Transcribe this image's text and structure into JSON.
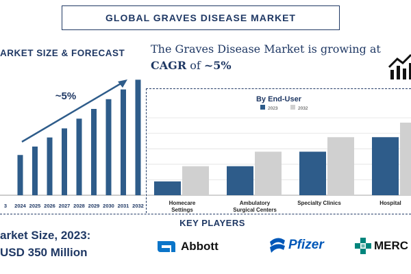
{
  "header": {
    "title": "GLOBAL GRAVES DISEASE MARKET"
  },
  "forecast": {
    "title": "ARKET SIZE & FORECAST",
    "cagr_annotation": "~5%"
  },
  "headline": {
    "line1": "The Graves Disease Market is growing at",
    "cagr_word": "CAGR",
    "of_word": " of ",
    "cagr_value": "~5%"
  },
  "market_size": {
    "label": "arket Size, 2023:",
    "value": "USD 350 Million"
  },
  "key_players": {
    "title": "KEY PLAYERS",
    "companies": [
      {
        "name": "Abbott",
        "icon": "abbott-logo-icon"
      },
      {
        "name": "Pfizer",
        "icon": "pfizer-logo-icon"
      },
      {
        "name": "MERC",
        "icon": "merck-logo-icon"
      }
    ]
  },
  "colors": {
    "navy": "#1f3864",
    "bar_2023": "#2e5c8a",
    "bar_2032": "#d0d0d0",
    "grid": "#e0e0e0"
  },
  "chart_data": [
    {
      "type": "bar",
      "title": "",
      "categories": [
        "3",
        "2024",
        "2025",
        "2026",
        "2027",
        "2028",
        "2029",
        "2030",
        "2031",
        "2032"
      ],
      "values": [
        0,
        62,
        75,
        89,
        103,
        118,
        133,
        148,
        163,
        178
      ],
      "xlabel": "",
      "ylabel": "",
      "ylim": [
        0,
        190
      ],
      "grid": false,
      "annotation": "~5%"
    },
    {
      "type": "bar",
      "title": "By End-User",
      "categories": [
        "Homecare Settings",
        "Ambulatory Surgical Centers",
        "Specialty Clinics",
        "Hospital"
      ],
      "series": [
        {
          "name": "2023",
          "values": [
            20,
            42,
            63,
            84
          ]
        },
        {
          "name": "2032",
          "values": [
            42,
            63,
            84,
            105
          ]
        }
      ],
      "xlabel": "",
      "ylabel": "",
      "ylim": [
        0,
        112
      ],
      "grid": true,
      "legend": "top-center"
    }
  ]
}
